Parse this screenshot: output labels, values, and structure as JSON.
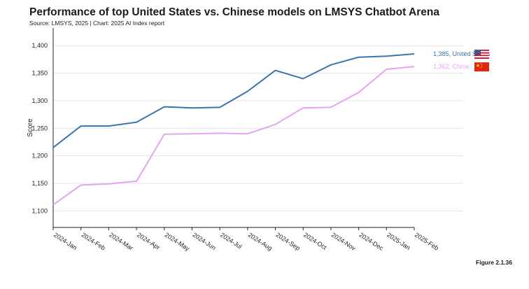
{
  "header": {
    "title": "Performance of top United States vs. Chinese models on LMSYS Chatbot Arena",
    "subtitle": "Source: LMSYS, 2025 | Chart: 2025 AI Index report"
  },
  "footer": {
    "figure": "Figure 2.1.36"
  },
  "chart_data": {
    "type": "line",
    "categories": [
      "2024-Jan",
      "2024-Feb",
      "2024-Mar",
      "2024-Apr",
      "2024-May",
      "2024-Jun",
      "2024-Jul",
      "2024-Aug",
      "2024-Sep",
      "2024-Oct",
      "2024-Nov",
      "2024-Dec",
      "2025-Jan",
      "2025-Feb"
    ],
    "series": [
      {
        "name": "United States",
        "color": "#3a75ad",
        "end_label": "1,385, United States",
        "flag": "us-flag",
        "values": [
          1215,
          1254,
          1254,
          1261,
          1289,
          1287,
          1288,
          1317,
          1355,
          1340,
          1365,
          1379,
          1381,
          1385
        ]
      },
      {
        "name": "China",
        "color": "#e5a3f3",
        "end_label": "1,362, China",
        "flag": "china-flag",
        "values": [
          1111,
          1147,
          1149,
          1154,
          1239,
          1240,
          1241,
          1240,
          1257,
          1287,
          1288,
          1315,
          1357,
          1362
        ]
      }
    ],
    "ylabel": "Score",
    "xlabel": "",
    "ylim": [
      1070,
      1432
    ],
    "yticks": [
      1100,
      1150,
      1200,
      1250,
      1300,
      1350,
      1400
    ],
    "ytick_labels": [
      "1,100",
      "1,150",
      "1,200",
      "1,250",
      "1,300",
      "1,350",
      "1,400"
    ],
    "grid": "horizontal",
    "legend": "end-of-line labels"
  }
}
